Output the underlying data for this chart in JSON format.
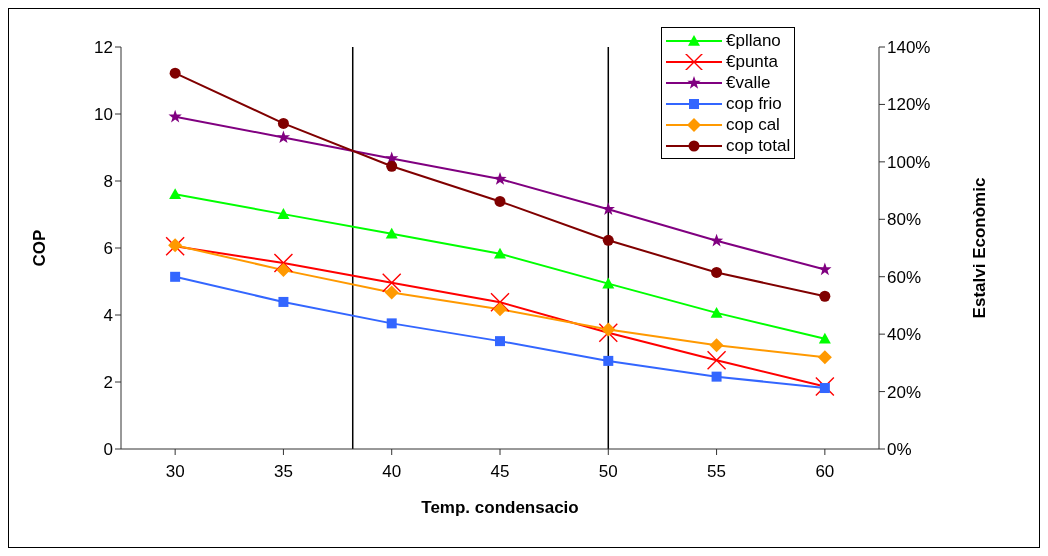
{
  "chart_data": {
    "type": "line",
    "xlabel": "Temp. condensacio",
    "ylabel": "COP",
    "y2label": "Estalvi Econòmic",
    "x": [
      30,
      35,
      40,
      45,
      50,
      55,
      60
    ],
    "xlim": [
      27.5,
      62.5
    ],
    "xticks": [
      30,
      35,
      40,
      45,
      50,
      55,
      60
    ],
    "ylim": [
      0,
      12
    ],
    "yticks": [
      0,
      2,
      4,
      6,
      8,
      10,
      12
    ],
    "y2lim": [
      0,
      140
    ],
    "y2ticks": [
      {
        "value": 0,
        "label": "0%"
      },
      {
        "value": 20,
        "label": "20%"
      },
      {
        "value": 40,
        "label": "40%"
      },
      {
        "value": 60,
        "label": "60%"
      },
      {
        "value": 80,
        "label": "80%"
      },
      {
        "value": 100,
        "label": "100%"
      },
      {
        "value": 120,
        "label": "120%"
      },
      {
        "value": 140,
        "label": "140%"
      }
    ],
    "grid": false,
    "legend": "top right",
    "line_style": "solid",
    "ref_lines": [
      {
        "axis": "x",
        "value": 38.2,
        "color": "#000000"
      },
      {
        "axis": "x",
        "value": 50,
        "color": "#000000"
      }
    ],
    "series": [
      {
        "name": "€pllano",
        "color": "#00ff00",
        "axis": "y2",
        "marker": "triangle",
        "values": [
          88.7,
          81.8,
          75,
          68,
          57.6,
          47.4,
          38.4
        ]
      },
      {
        "name": "€punta",
        "color": "#ff0000",
        "axis": "y2",
        "marker": "cross",
        "values": [
          70.6,
          64.8,
          57.9,
          51.1,
          40.5,
          30.9,
          21.8
        ]
      },
      {
        "name": "€valle",
        "color": "#800080",
        "axis": "y2",
        "marker": "star",
        "values": [
          115.7,
          108.5,
          101.2,
          94,
          83.5,
          72.5,
          62.5
        ]
      },
      {
        "name": "cop frio",
        "color": "#3366ff",
        "marker": "square",
        "values": [
          5.14,
          4.39,
          3.75,
          3.22,
          2.63,
          2.16,
          1.82
        ]
      },
      {
        "name": "cop cal",
        "color": "#ff9900",
        "marker": "diamond",
        "values": [
          6.08,
          5.34,
          4.67,
          4.17,
          3.57,
          3.1,
          2.74
        ]
      },
      {
        "name": "cop total",
        "color": "#800000",
        "marker": "circle",
        "values": [
          11.22,
          9.72,
          8.44,
          7.39,
          6.23,
          5.27,
          4.56
        ]
      }
    ]
  }
}
